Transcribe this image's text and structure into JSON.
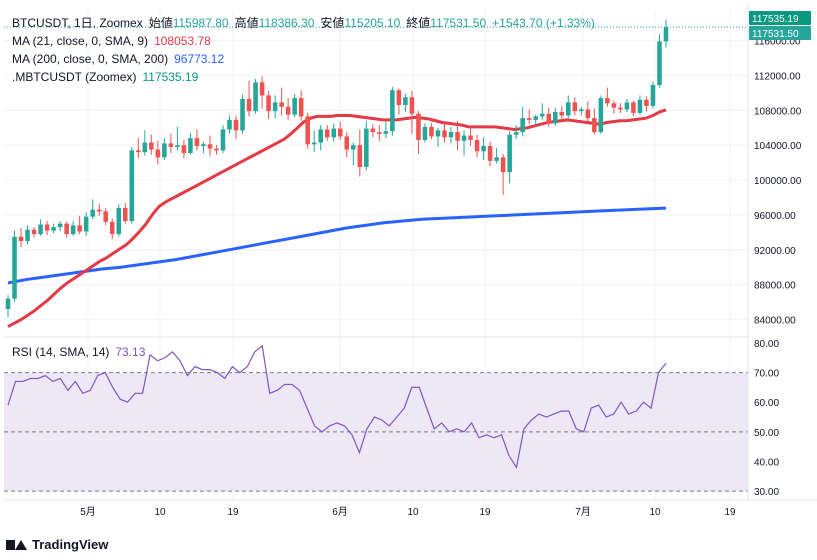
{
  "header": {
    "symbol": "BTCUSDT, 1日, Zoomex",
    "open_label": "始値",
    "open": "115987.80",
    "high_label": "高値",
    "high": "118386.30",
    "low_label": "安値",
    "low": "115205.10",
    "close_label": "終値",
    "close": "117531.50",
    "change": "+1543.70 (+1.33%)"
  },
  "indicators": {
    "ma21_label": "MA (21, close, 0, SMA, 9)",
    "ma21_value": "108053.78",
    "ma200_label": "MA (200, close, 0, SMA, 200)",
    "ma200_value": "96773.12",
    "mbt_label": ".MBTCUSDT (Zoomex)",
    "mbt_value": "117535.19",
    "rsi_label": "RSI (14, SMA, 14)",
    "rsi_value": "73.13"
  },
  "price_tags": {
    "mbt": "117535.19",
    "close": "117531.50"
  },
  "colors": {
    "up": "#26a69a",
    "down": "#ef5350",
    "ma21": "#e53945",
    "ma200": "#2962ff",
    "rsi": "#7e57c2",
    "rsi_band": "#ede7f6",
    "mbt_tag": "#089981",
    "close_tag": "#26a69a"
  },
  "footer": {
    "brand": "TradingView",
    "logo_icon": "tradingview-logo-icon"
  },
  "chart_data": {
    "type": "candlestick",
    "y_ticks": [
      "84000.00",
      "88000.00",
      "92000.00",
      "96000.00",
      "100000.00",
      "104000.00",
      "108000.00",
      "112000.00",
      "116000.00"
    ],
    "rsi_ticks": [
      "30.00",
      "40.00",
      "50.00",
      "60.00",
      "70.00",
      "80.00"
    ],
    "x_ticks": [
      "5月",
      "10",
      "19",
      "6月",
      "10",
      "19",
      "7月",
      "10",
      "19"
    ],
    "ylim": [
      82000,
      119500
    ],
    "rsi_ylim": [
      27,
      82
    ],
    "rsi_levels": [
      70,
      50,
      30
    ],
    "candles": [
      [
        85200,
        86800,
        84300,
        86400
      ],
      [
        86400,
        94200,
        86000,
        93500
      ],
      [
        93500,
        94500,
        92300,
        93000
      ],
      [
        93000,
        94800,
        92600,
        94300
      ],
      [
        94300,
        94600,
        93400,
        93800
      ],
      [
        93800,
        95500,
        93600,
        94900
      ],
      [
        94900,
        95300,
        93700,
        94200
      ],
      [
        94200,
        95000,
        93900,
        94600
      ],
      [
        94600,
        95300,
        94100,
        95000
      ],
      [
        95000,
        95200,
        93400,
        93800
      ],
      [
        93800,
        95300,
        93600,
        94800
      ],
      [
        94800,
        95900,
        93800,
        94100
      ],
      [
        94100,
        96300,
        93600,
        95800
      ],
      [
        95800,
        97800,
        95500,
        96600
      ],
      [
        96600,
        97300,
        95900,
        96400
      ],
      [
        96400,
        96800,
        94800,
        95200
      ],
      [
        95200,
        95600,
        93200,
        93800
      ],
      [
        93800,
        97200,
        93500,
        96800
      ],
      [
        96800,
        97400,
        95000,
        95300
      ],
      [
        95300,
        103800,
        95000,
        103400
      ],
      [
        103400,
        104800,
        102500,
        103200
      ],
      [
        103200,
        105700,
        102800,
        104300
      ],
      [
        104300,
        105200,
        102900,
        103500
      ],
      [
        103500,
        104500,
        101800,
        102600
      ],
      [
        102600,
        104800,
        102300,
        104200
      ],
      [
        104200,
        105300,
        103100,
        103800
      ],
      [
        103800,
        106100,
        103400,
        104000
      ],
      [
        104000,
        104600,
        102500,
        103100
      ],
      [
        103100,
        105400,
        102900,
        104800
      ],
      [
        104800,
        105800,
        103400,
        103900
      ],
      [
        103900,
        104400,
        103100,
        104100
      ],
      [
        104100,
        105100,
        102700,
        103600
      ],
      [
        103600,
        104000,
        102900,
        103400
      ],
      [
        103400,
        106300,
        103100,
        105800
      ],
      [
        105800,
        107400,
        105300,
        106900
      ],
      [
        106900,
        107400,
        104700,
        105700
      ],
      [
        105700,
        109800,
        105300,
        109300
      ],
      [
        109300,
        111400,
        107300,
        107900
      ],
      [
        107900,
        111600,
        107600,
        111200
      ],
      [
        111200,
        111900,
        108200,
        109700
      ],
      [
        109700,
        110200,
        107000,
        107900
      ],
      [
        107900,
        109700,
        107100,
        108900
      ],
      [
        108900,
        110600,
        107400,
        108400
      ],
      [
        108400,
        109400,
        106900,
        107500
      ],
      [
        107500,
        109900,
        107200,
        109400
      ],
      [
        109400,
        110300,
        106800,
        107300
      ],
      [
        107300,
        107700,
        103600,
        104100
      ],
      [
        104100,
        105700,
        103200,
        104300
      ],
      [
        104300,
        106300,
        103400,
        105800
      ],
      [
        105800,
        106300,
        104500,
        104900
      ],
      [
        104900,
        106500,
        104400,
        105900
      ],
      [
        105900,
        106700,
        104600,
        105000
      ],
      [
        105000,
        105500,
        102600,
        103500
      ],
      [
        103500,
        104300,
        101700,
        104000
      ],
      [
        104000,
        105800,
        100400,
        101500
      ],
      [
        101500,
        106800,
        101100,
        105900
      ],
      [
        105900,
        106400,
        104900,
        105500
      ],
      [
        105500,
        106300,
        104500,
        105300
      ],
      [
        105300,
        106700,
        104800,
        105600
      ],
      [
        105600,
        110700,
        105100,
        110300
      ],
      [
        110300,
        110500,
        107500,
        108600
      ],
      [
        108600,
        109900,
        107800,
        109500
      ],
      [
        109500,
        110200,
        105300,
        107600
      ],
      [
        107600,
        107900,
        103000,
        104600
      ],
      [
        104600,
        106500,
        104300,
        106100
      ],
      [
        106100,
        106500,
        104700,
        105000
      ],
      [
        105000,
        106000,
        103800,
        105700
      ],
      [
        105700,
        106600,
        104300,
        104900
      ],
      [
        104900,
        106100,
        104200,
        105500
      ],
      [
        105500,
        106800,
        103400,
        104500
      ],
      [
        104500,
        105700,
        102800,
        105100
      ],
      [
        105100,
        106000,
        103900,
        104600
      ],
      [
        104600,
        105200,
        102600,
        103300
      ],
      [
        103300,
        104900,
        102300,
        103900
      ],
      [
        103900,
        104400,
        101600,
        102200
      ],
      [
        102200,
        103700,
        101900,
        102600
      ],
      [
        102600,
        103000,
        98300,
        100900
      ],
      [
        100900,
        105600,
        99600,
        105200
      ],
      [
        105200,
        106300,
        104700,
        105500
      ],
      [
        105500,
        108400,
        105000,
        107100
      ],
      [
        107100,
        108100,
        106400,
        106900
      ],
      [
        106900,
        107500,
        106200,
        107300
      ],
      [
        107300,
        108800,
        106900,
        107600
      ],
      [
        107600,
        108300,
        106100,
        106500
      ],
      [
        106500,
        108300,
        106200,
        107800
      ],
      [
        107800,
        108500,
        107000,
        107400
      ],
      [
        107400,
        109700,
        107100,
        108900
      ],
      [
        108900,
        109500,
        107400,
        107900
      ],
      [
        107900,
        108400,
        107400,
        108100
      ],
      [
        108100,
        109000,
        106700,
        107100
      ],
      [
        107100,
        108200,
        105200,
        105500
      ],
      [
        105500,
        109700,
        105300,
        109400
      ],
      [
        109400,
        110600,
        108400,
        108800
      ],
      [
        108800,
        109100,
        107600,
        108300
      ],
      [
        108300,
        108800,
        107700,
        108100
      ],
      [
        108100,
        109300,
        107800,
        108900
      ],
      [
        108900,
        109100,
        107300,
        107700
      ],
      [
        107700,
        109700,
        107500,
        109200
      ],
      [
        109200,
        109600,
        107900,
        108500
      ],
      [
        108500,
        111300,
        108200,
        110900
      ],
      [
        110900,
        116700,
        110600,
        115900
      ],
      [
        115900,
        118400,
        115200,
        117531
      ]
    ],
    "ma21": [
      83200,
      83600,
      84000,
      84500,
      85000,
      85600,
      86200,
      86900,
      87600,
      88200,
      88700,
      89200,
      89700,
      90200,
      90700,
      91100,
      91600,
      92100,
      92600,
      93300,
      94100,
      95000,
      96100,
      97000,
      97500,
      97900,
      98300,
      98700,
      99100,
      99500,
      99900,
      100300,
      100700,
      101100,
      101500,
      101900,
      102300,
      102700,
      103100,
      103500,
      103900,
      104300,
      104700,
      105300,
      106000,
      106700,
      107100,
      107300,
      107300,
      107300,
      107400,
      107400,
      107400,
      107300,
      107200,
      107100,
      107000,
      106900,
      106900,
      106900,
      107000,
      107100,
      107200,
      107100,
      107000,
      106800,
      106600,
      106500,
      106400,
      106300,
      106100,
      106100,
      106100,
      106100,
      106100,
      106000,
      105900,
      105800,
      105900,
      106000,
      106200,
      106400,
      106600,
      106700,
      106800,
      106900,
      106800,
      106700,
      106600,
      106500,
      106400,
      106600,
      106700,
      106800,
      106800,
      106900,
      107000,
      107100,
      107400,
      107800,
      108053
    ],
    "ma200": [
      88200,
      88600,
      88900,
      89200,
      89500,
      89800,
      90000,
      90300,
      90600,
      90900,
      91300,
      91700,
      92100,
      92500,
      92900,
      93300,
      93700,
      94100,
      94500,
      94800,
      95100,
      95300,
      95500,
      95600,
      95700,
      95800,
      95900,
      96000,
      96100,
      96200,
      96300,
      96400,
      96500,
      96600,
      96700,
      96773
    ],
    "rsi": [
      59,
      67,
      67,
      68,
      68,
      69,
      67,
      68,
      64,
      67,
      63,
      64,
      69,
      70,
      65,
      61,
      60,
      63,
      63,
      76,
      74,
      75,
      77,
      74,
      69,
      72,
      71,
      71,
      70,
      68,
      72,
      70,
      72,
      77,
      79,
      63,
      64,
      66,
      66,
      64,
      58,
      52,
      50,
      52,
      53,
      52,
      49,
      43,
      51,
      55,
      54,
      52,
      55,
      58,
      65,
      65,
      58,
      51,
      53,
      50,
      51,
      50,
      53,
      48,
      49,
      48,
      49,
      42,
      38,
      51,
      54,
      56,
      55,
      56,
      57,
      57,
      51,
      50,
      58,
      59,
      55,
      56,
      60,
      56,
      57,
      60,
      58,
      70,
      73.13
    ]
  }
}
